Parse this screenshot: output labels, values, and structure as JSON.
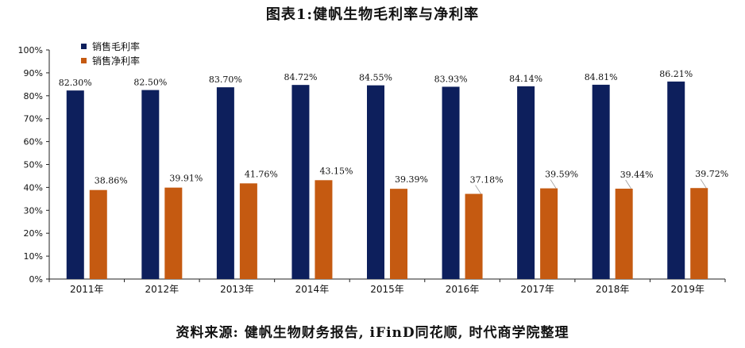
{
  "chart_data": {
    "type": "bar",
    "title": "图表1:健帆生物毛利率与净利率",
    "categories": [
      "2011年",
      "2012年",
      "2013年",
      "2014年",
      "2015年",
      "2016年",
      "2017年",
      "2018年",
      "2019年"
    ],
    "series": [
      {
        "name": "销售毛利率",
        "color": "#0d1f5c",
        "values": [
          82.3,
          82.5,
          83.7,
          84.72,
          84.55,
          83.93,
          84.14,
          84.81,
          86.21
        ],
        "labels": [
          "82.30%",
          "82.50%",
          "83.70%",
          "84.72%",
          "84.55%",
          "83.93%",
          "84.14%",
          "84.81%",
          "86.21%"
        ]
      },
      {
        "name": "销售净利率",
        "color": "#c55a11",
        "values": [
          38.86,
          39.91,
          41.76,
          43.15,
          39.39,
          37.18,
          39.59,
          39.44,
          39.72
        ],
        "labels": [
          "38.86%",
          "39.91%",
          "41.76%",
          "43.15%",
          "39.39%",
          "37.18%",
          "39.59%",
          "39.44%",
          "39.72%"
        ]
      }
    ],
    "yticks": [
      "0%",
      "10%",
      "20%",
      "30%",
      "40%",
      "50%",
      "60%",
      "70%",
      "80%",
      "90%",
      "100%"
    ],
    "ylim": [
      0,
      100
    ],
    "legend_position": "top-left",
    "grid": false
  },
  "source_text": "资料来源: 健帆生物财务报告, iFinD同花顺, 时代商学院整理"
}
